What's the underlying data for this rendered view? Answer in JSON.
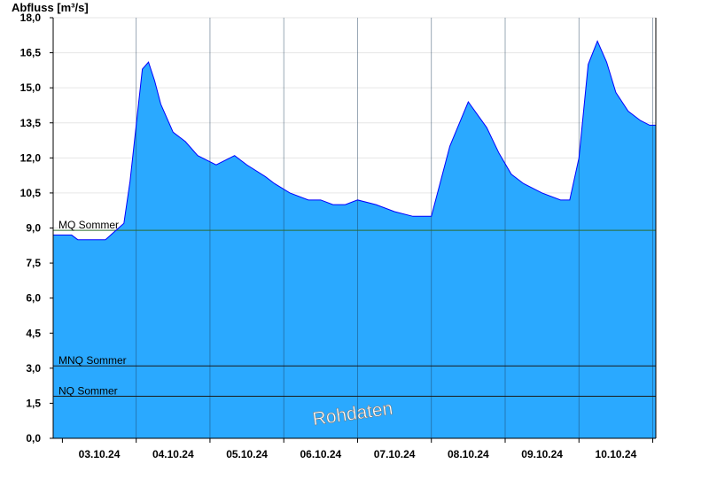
{
  "chart_data": {
    "type": "area",
    "title": "",
    "ylabel": "Abfluss [m³/s]",
    "xlabel": "",
    "ylim": [
      0,
      18
    ],
    "xlim": [
      "02.10.2024 21:00",
      "11.10.2024 01:00"
    ],
    "grid": true,
    "y_ticks": [
      "0,0",
      "1,5",
      "3,0",
      "4,5",
      "6,0",
      "7,5",
      "9,0",
      "10,5",
      "12,0",
      "13,5",
      "15,0",
      "16,5",
      "18,0"
    ],
    "x_ticks": [
      "03.10.24",
      "04.10.24",
      "05.10.24",
      "06.10.24",
      "07.10.24",
      "08.10.24",
      "09.10.24",
      "10.10.24"
    ],
    "reference_lines": [
      {
        "name": "MQ Sommer",
        "value": 8.9
      },
      {
        "name": "MNQ Sommer",
        "value": 3.1
      },
      {
        "name": "NQ Sommer",
        "value": 1.8
      }
    ],
    "watermark": "Rohdaten",
    "colors": {
      "fill": "#2aa9ff",
      "line": "#0000ff",
      "mq_line": "#2d6b2d",
      "ref_line": "#1a1a1a",
      "grid": "#000000"
    },
    "series": [
      {
        "x": [
          "02.10.2024 21:00",
          "03.10.2024 03:00",
          "03.10.2024 05:00",
          "03.10.2024 10:00",
          "03.10.2024 14:00",
          "03.10.2024 20:00",
          "03.10.2024 22:00",
          "04.10.2024 02:00",
          "04.10.2024 04:00",
          "04.10.2024 06:00",
          "04.10.2024 08:00",
          "04.10.2024 12:00",
          "04.10.2024 16:00",
          "04.10.2024 20:00",
          "05.10.2024 02:00",
          "05.10.2024 08:00",
          "05.10.2024 12:00",
          "05.10.2024 18:00",
          "05.10.2024 21:00",
          "06.10.2024 02:00",
          "06.10.2024 08:00",
          "06.10.2024 12:00",
          "06.10.2024 16:00",
          "06.10.2024 20:00",
          "07.10.2024 00:00",
          "07.10.2024 06:00",
          "07.10.2024 12:00",
          "07.10.2024 18:00",
          "08.10.2024 00:00",
          "08.10.2024 06:00",
          "08.10.2024 12:00",
          "08.10.2024 18:00",
          "08.10.2024 22:00",
          "09.10.2024 02:00",
          "09.10.2024 06:00",
          "09.10.2024 12:00",
          "09.10.2024 18:00",
          "09.10.2024 21:00",
          "10.10.2024 00:00",
          "10.10.2024 03:00",
          "10.10.2024 06:00",
          "10.10.2024 09:00",
          "10.10.2024 12:00",
          "10.10.2024 16:00",
          "10.10.2024 20:00",
          "10.10.2024 23:00",
          "11.10.2024 01:00"
        ],
        "y": [
          8.7,
          8.7,
          8.5,
          8.5,
          8.5,
          9.2,
          11.0,
          15.8,
          16.1,
          15.3,
          14.3,
          13.1,
          12.7,
          12.1,
          11.7,
          12.1,
          11.7,
          11.2,
          10.9,
          10.5,
          10.2,
          10.2,
          10.0,
          10.0,
          10.2,
          10.0,
          9.7,
          9.5,
          9.5,
          12.5,
          14.4,
          13.3,
          12.2,
          11.3,
          10.9,
          10.5,
          10.2,
          10.2,
          12.0,
          16.0,
          17.0,
          16.1,
          14.8,
          14.0,
          13.6,
          13.4,
          13.4
        ]
      }
    ]
  }
}
